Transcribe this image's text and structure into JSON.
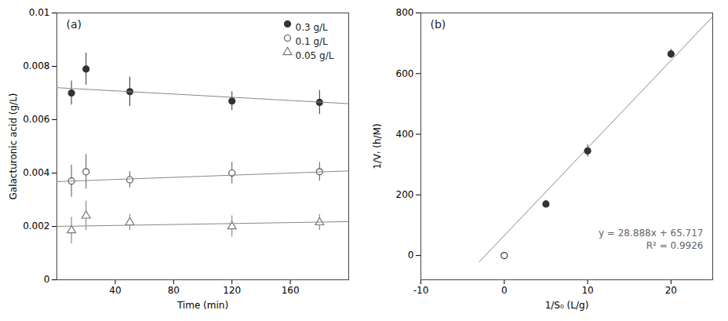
{
  "chart_data": [
    {
      "type": "scatter",
      "title": "(a)",
      "xlabel": "Time (min)",
      "ylabel": "Galacturonic acid (g/L)",
      "xlim": [
        0,
        200
      ],
      "ylim": [
        0,
        0.01
      ],
      "xticks": [
        40,
        80,
        120,
        160
      ],
      "yticks": [
        0,
        0.002,
        0.004,
        0.006,
        0.008,
        0.01
      ],
      "legend": "upper right",
      "series": [
        {
          "name": "0.3 g/L",
          "type": "scatter",
          "marker": "circle",
          "color": "#333333",
          "x": [
            10,
            20,
            50,
            120,
            180
          ],
          "values": [
            0.007,
            0.0079,
            0.00705,
            0.0067,
            0.00665
          ],
          "errors": [
            0.00045,
            0.0006,
            0.00055,
            0.00035,
            0.00045
          ]
        },
        {
          "type": "line",
          "color": "#888888",
          "x": [
            0,
            200
          ],
          "values": [
            0.0072,
            0.0066
          ]
        },
        {
          "name": "0.1 g/L",
          "type": "scatter",
          "marker": "circle-open",
          "color": "#555555",
          "x": [
            10,
            20,
            50,
            120,
            180
          ],
          "values": [
            0.0037,
            0.00405,
            0.00375,
            0.004,
            0.00405
          ],
          "errors": [
            0.0006,
            0.00065,
            0.0003,
            0.0004,
            0.00035
          ]
        },
        {
          "type": "line",
          "color": "#888888",
          "x": [
            0,
            200
          ],
          "values": [
            0.00368,
            0.00408
          ]
        },
        {
          "name": "0.05 g/L",
          "type": "scatter",
          "marker": "triangle-open",
          "color": "#777777",
          "x": [
            10,
            20,
            50,
            120,
            180
          ],
          "values": [
            0.00185,
            0.0024,
            0.00215,
            0.002,
            0.00215
          ],
          "errors": [
            0.0005,
            0.00055,
            0.0003,
            0.0004,
            0.0003
          ]
        },
        {
          "type": "line",
          "color": "#888888",
          "x": [
            0,
            200
          ],
          "values": [
            0.002,
            0.00218
          ]
        }
      ]
    },
    {
      "type": "scatter",
      "title": "(b)",
      "xlabel": "1/S₀ (L/g)",
      "ylabel": "1/Vᵣ (h/M)",
      "xlim": [
        -10,
        25
      ],
      "ylim": [
        -80,
        800
      ],
      "xticks": [
        -10,
        0,
        10,
        20
      ],
      "yticks": [
        0,
        200,
        400,
        600,
        800
      ],
      "annotations": [
        {
          "text": "y = 28.888x + 65.717",
          "color": "#666666"
        },
        {
          "text": "R² = 0.9926",
          "color": "#666666"
        }
      ],
      "series": [
        {
          "type": "line",
          "color": "#888888",
          "x": [
            -3.0,
            25
          ],
          "values": [
            -20.947,
            787.917
          ]
        },
        {
          "type": "scatter",
          "marker": "circle-open",
          "color": "#333333",
          "x": [
            0
          ],
          "values": [
            0
          ],
          "errors": [
            8
          ]
        },
        {
          "type": "scatter",
          "marker": "circle",
          "color": "#333333",
          "x": [
            5,
            10,
            20
          ],
          "values": [
            170,
            345,
            665
          ],
          "errors": [
            12,
            20,
            15
          ]
        }
      ]
    }
  ]
}
